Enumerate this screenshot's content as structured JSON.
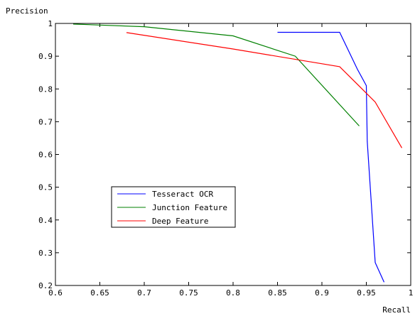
{
  "chart_data": {
    "type": "line",
    "title": "",
    "xlabel": "Recall",
    "ylabel": "Precision",
    "xlim": [
      0.6,
      1.0
    ],
    "ylim": [
      0.2,
      1.0
    ],
    "xticks": [
      0.6,
      0.65,
      0.7,
      0.75,
      0.8,
      0.85,
      0.9,
      0.95,
      1.0
    ],
    "xtick_labels": [
      "0.6",
      "0.65",
      "0.7",
      "0.75",
      "0.8",
      "0.85",
      "0.9",
      "0.95",
      "1"
    ],
    "yticks": [
      0.2,
      0.3,
      0.4,
      0.5,
      0.6,
      0.7,
      0.8,
      0.9,
      1.0
    ],
    "ytick_labels": [
      "0.2",
      "0.3",
      "0.4",
      "0.5",
      "0.6",
      "0.7",
      "0.8",
      "0.9",
      "1"
    ],
    "grid": false,
    "legend_position": "lower-left",
    "series": [
      {
        "name": "Tesseract OCR",
        "color": "#0000ff",
        "x": [
          0.85,
          0.92,
          0.94,
          0.95,
          0.951,
          0.96,
          0.97
        ],
        "y": [
          0.973,
          0.973,
          0.86,
          0.81,
          0.64,
          0.27,
          0.21
        ]
      },
      {
        "name": "Junction Feature",
        "color": "#008000",
        "x": [
          0.62,
          0.7,
          0.8,
          0.87,
          0.942
        ],
        "y": [
          0.998,
          0.99,
          0.962,
          0.9,
          0.687
        ]
      },
      {
        "name": "Deep Feature",
        "color": "#ff0000",
        "x": [
          0.68,
          0.8,
          0.92,
          0.96,
          0.99
        ],
        "y": [
          0.972,
          0.922,
          0.868,
          0.76,
          0.62
        ]
      }
    ]
  }
}
